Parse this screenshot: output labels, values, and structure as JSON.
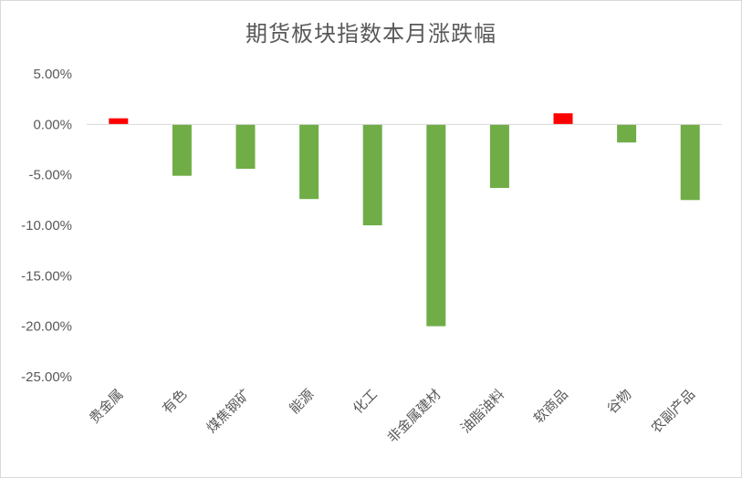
{
  "chart_data": {
    "type": "bar",
    "title": "期货板块指数本月涨跌幅",
    "xlabel": "",
    "ylabel": "",
    "categories": [
      "贵金属",
      "有色",
      "煤焦钢矿",
      "能源",
      "化工",
      "非金属建材",
      "油脂油料",
      "软商品",
      "谷物",
      "农副产品"
    ],
    "values": [
      0.6,
      -5.1,
      -4.4,
      -7.4,
      -10.0,
      -20.0,
      -6.3,
      1.1,
      -1.8,
      -7.5
    ],
    "ylim": [
      -25,
      5
    ],
    "yticks": [
      "5.00%",
      "0.00%",
      "-5.00%",
      "-10.00%",
      "-15.00%",
      "-20.00%",
      "-25.00%"
    ],
    "ytick_values": [
      5,
      0,
      -5,
      -10,
      -15,
      -20,
      -25
    ],
    "grid": false,
    "legend": "none",
    "colors": {
      "positive": "#ff0000",
      "negative": "#70ad47",
      "zero_line": "#d9d9d9",
      "text": "#595959"
    }
  }
}
